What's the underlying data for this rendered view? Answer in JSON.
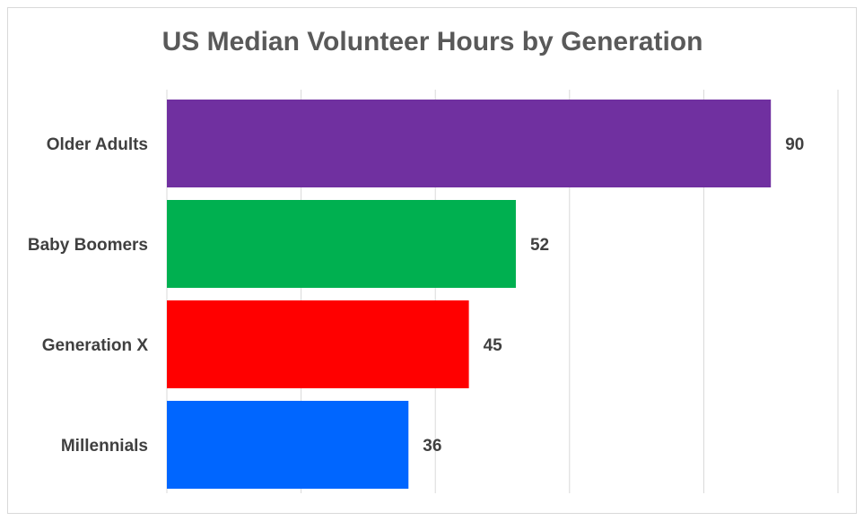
{
  "chart_data": {
    "type": "bar",
    "orientation": "horizontal",
    "title": "US Median Volunteer Hours by Generation",
    "categories": [
      "Older Adults",
      "Baby Boomers",
      "Generation X",
      "Millennials"
    ],
    "values": [
      90,
      52,
      45,
      36
    ],
    "colors": [
      "#7030a0",
      "#00b050",
      "#ff0000",
      "#0066ff"
    ],
    "xlim": [
      0,
      100
    ],
    "xticks": [
      0,
      20,
      40,
      60,
      80,
      100
    ],
    "grid": true
  }
}
